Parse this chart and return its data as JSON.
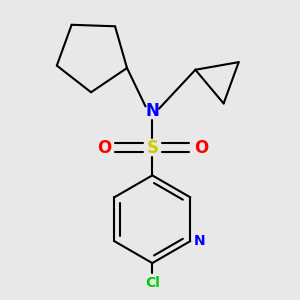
{
  "background_color": "#e8e8e8",
  "colors": {
    "S": "#cccc00",
    "N": "#0000ff",
    "O": "#ff0000",
    "Cl": "#00cc00",
    "C": "#000000"
  },
  "lw": 1.5,
  "lw_double_inner": 1.4,
  "font_size_atom": 10,
  "font_size_cl": 10
}
